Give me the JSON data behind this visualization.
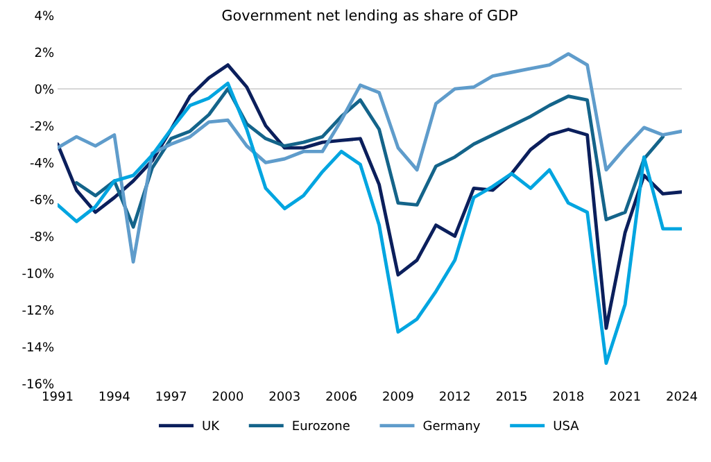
{
  "chart_data": {
    "type": "line",
    "title": "Government net lending as share of GDP",
    "x": [
      1991,
      1992,
      1993,
      1994,
      1995,
      1996,
      1997,
      1998,
      1999,
      2000,
      2001,
      2002,
      2003,
      2004,
      2005,
      2006,
      2007,
      2008,
      2009,
      2010,
      2011,
      2012,
      2013,
      2014,
      2015,
      2016,
      2017,
      2018,
      2019,
      2020,
      2021,
      2022,
      2023,
      2024
    ],
    "series": [
      {
        "name": "UK",
        "color": "#0b1f5c",
        "values": [
          -3.0,
          -5.5,
          -6.7,
          -5.9,
          -5.0,
          -3.9,
          -2.2,
          -0.4,
          0.6,
          1.3,
          0.1,
          -2.0,
          -3.2,
          -3.2,
          -2.9,
          -2.8,
          -2.7,
          -5.2,
          -10.1,
          -9.3,
          -7.4,
          -8.0,
          -5.4,
          -5.5,
          -4.6,
          -3.3,
          -2.5,
          -2.2,
          -2.5,
          -13.0,
          -7.8,
          -4.7,
          -5.7,
          -5.6
        ]
      },
      {
        "name": "Eurozone",
        "color": "#14648a",
        "values": [
          null,
          -5.1,
          -5.8,
          -5.0,
          -7.5,
          -4.3,
          -2.7,
          -2.3,
          -1.4,
          0.0,
          -1.9,
          -2.7,
          -3.1,
          -2.9,
          -2.6,
          -1.5,
          -0.6,
          -2.2,
          -6.2,
          -6.3,
          -4.2,
          -3.7,
          -3.0,
          -2.5,
          -2.0,
          -1.5,
          -0.9,
          -0.4,
          -0.6,
          -7.1,
          -6.7,
          -3.8,
          -2.6,
          null
        ]
      },
      {
        "name": "Germany",
        "color": "#5f9ccb",
        "values": [
          -3.2,
          -2.6,
          -3.1,
          -2.5,
          -9.4,
          -3.5,
          -3.0,
          -2.6,
          -1.8,
          -1.7,
          -3.1,
          -4.0,
          -3.8,
          -3.4,
          -3.4,
          -1.7,
          0.2,
          -0.2,
          -3.2,
          -4.4,
          -0.8,
          0.0,
          0.1,
          0.7,
          0.9,
          1.1,
          1.3,
          1.9,
          1.3,
          -4.4,
          -3.2,
          -2.1,
          -2.5,
          -2.3
        ]
      },
      {
        "name": "USA",
        "color": "#00a5e0",
        "values": [
          -6.3,
          -7.2,
          -6.4,
          -5.0,
          -4.7,
          -3.6,
          -2.2,
          -0.9,
          -0.5,
          0.3,
          -2.2,
          -5.4,
          -6.5,
          -5.8,
          -4.5,
          -3.4,
          -4.1,
          -7.4,
          -13.2,
          -12.5,
          -11.0,
          -9.3,
          -5.9,
          -5.3,
          -4.6,
          -5.4,
          -4.4,
          -6.2,
          -6.7,
          -14.9,
          -11.7,
          -3.7,
          -7.6,
          -7.6
        ]
      }
    ],
    "xlim": [
      1991,
      2024
    ],
    "xticks": [
      1991,
      1994,
      1997,
      2000,
      2003,
      2006,
      2009,
      2012,
      2015,
      2018,
      2021,
      2024
    ],
    "ylim": [
      -16,
      4
    ],
    "yticks": [
      {
        "value": -16,
        "label": "-16%"
      },
      {
        "value": -14,
        "label": "-14%"
      },
      {
        "value": -12,
        "label": "-12%"
      },
      {
        "value": -10,
        "label": "-10%"
      },
      {
        "value": -8,
        "label": "-8%"
      },
      {
        "value": -6,
        "label": "-6%"
      },
      {
        "value": -4,
        "label": "-4%"
      },
      {
        "value": -2,
        "label": "-2%"
      },
      {
        "value": 0,
        "label": "0%"
      },
      {
        "value": 2,
        "label": "2%"
      },
      {
        "value": 4,
        "label": "4%"
      }
    ],
    "ref_lines": [
      {
        "axis": "y",
        "value": 0,
        "color": "#d9d9d9"
      }
    ],
    "grid": false,
    "legend": "bottom",
    "marker": "none",
    "line_style": "solid"
  }
}
